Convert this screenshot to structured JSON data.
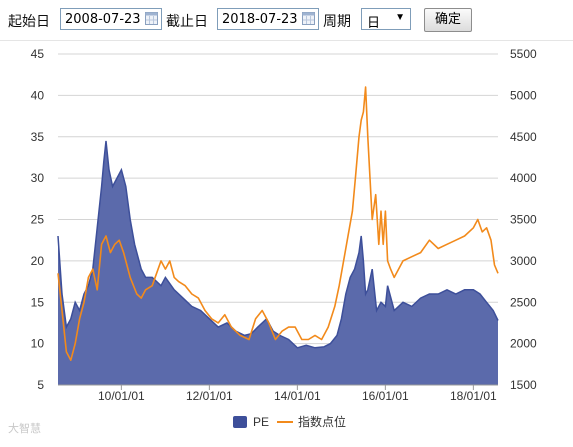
{
  "toolbar": {
    "start_label": "起始日",
    "start_value": "2008-07-23",
    "end_label": "截止日",
    "end_value": "2018-07-23",
    "period_label": "周期",
    "period_value": "日",
    "confirm_label": "确定"
  },
  "watermark": "大智慧",
  "chart_data": {
    "type": "line",
    "x_ticks": [
      "10/01/01",
      "12/01/01",
      "14/01/01",
      "16/01/01",
      "18/01/01"
    ],
    "x_tick_years": [
      2010,
      2012,
      2014,
      2016,
      2018
    ],
    "x_range": [
      2008.56,
      2018.56
    ],
    "y_left_ticks": [
      5,
      10,
      15,
      20,
      25,
      30,
      35,
      40,
      45
    ],
    "y_left_range": [
      5,
      45
    ],
    "y_right_ticks": [
      1500,
      2000,
      2500,
      3000,
      3500,
      4000,
      4500,
      5000,
      5500
    ],
    "y_right_range": [
      1500,
      5500
    ],
    "grid": true,
    "legend_position": "bottom",
    "colors": {
      "pe": "#3d4f9a",
      "pe_fill": "#5b6aab",
      "index": "#f28a1b"
    },
    "series": [
      {
        "name": "PE",
        "axis": "left",
        "style": "area",
        "x": [
          2008.56,
          2008.65,
          2008.75,
          2008.85,
          2008.95,
          2009.05,
          2009.15,
          2009.25,
          2009.35,
          2009.45,
          2009.55,
          2009.6,
          2009.65,
          2009.72,
          2009.8,
          2009.9,
          2010.0,
          2010.1,
          2010.2,
          2010.3,
          2010.45,
          2010.55,
          2010.7,
          2010.8,
          2010.9,
          2011.0,
          2011.2,
          2011.4,
          2011.6,
          2011.8,
          2012.0,
          2012.2,
          2012.4,
          2012.6,
          2012.8,
          2012.95,
          2013.1,
          2013.3,
          2013.45,
          2013.6,
          2013.8,
          2014.0,
          2014.2,
          2014.4,
          2014.6,
          2014.75,
          2014.9,
          2015.0,
          2015.1,
          2015.2,
          2015.3,
          2015.4,
          2015.45,
          2015.5,
          2015.55,
          2015.6,
          2015.7,
          2015.8,
          2015.9,
          2016.0,
          2016.05,
          2016.1,
          2016.2,
          2016.4,
          2016.6,
          2016.8,
          2017.0,
          2017.2,
          2017.4,
          2017.6,
          2017.8,
          2018.0,
          2018.15,
          2018.3,
          2018.45,
          2018.56
        ],
        "values": [
          23,
          16,
          12,
          13,
          15,
          14,
          16,
          17,
          19,
          24,
          29,
          32,
          34.5,
          31,
          29,
          30,
          31,
          29,
          25,
          22,
          19,
          18,
          18,
          17.5,
          17,
          18,
          16.5,
          15.5,
          14.5,
          14,
          13,
          12,
          12.5,
          11.5,
          11,
          11.2,
          12,
          13,
          11.5,
          11,
          10.5,
          9.5,
          9.8,
          9.5,
          9.6,
          10,
          11,
          13,
          16,
          18,
          19,
          21,
          23,
          20,
          16,
          16.5,
          19,
          14,
          15,
          14.5,
          17,
          16,
          14,
          15,
          14.5,
          15.5,
          16,
          16,
          16.5,
          16,
          16.5,
          16.5,
          16,
          15,
          14,
          12.8
        ]
      },
      {
        "name": "指数点位",
        "axis": "right",
        "style": "line",
        "x": [
          2008.56,
          2008.65,
          2008.75,
          2008.85,
          2008.95,
          2009.05,
          2009.15,
          2009.25,
          2009.35,
          2009.45,
          2009.55,
          2009.65,
          2009.75,
          2009.85,
          2009.95,
          2010.05,
          2010.2,
          2010.35,
          2010.45,
          2010.55,
          2010.7,
          2010.8,
          2010.9,
          2011.0,
          2011.1,
          2011.2,
          2011.3,
          2011.45,
          2011.6,
          2011.75,
          2011.9,
          2012.05,
          2012.2,
          2012.35,
          2012.5,
          2012.7,
          2012.9,
          2013.05,
          2013.2,
          2013.35,
          2013.5,
          2013.65,
          2013.8,
          2013.95,
          2014.1,
          2014.25,
          2014.4,
          2014.55,
          2014.7,
          2014.85,
          2014.95,
          2015.05,
          2015.15,
          2015.25,
          2015.32,
          2015.4,
          2015.45,
          2015.5,
          2015.55,
          2015.6,
          2015.65,
          2015.7,
          2015.78,
          2015.85,
          2015.9,
          2015.95,
          2016.0,
          2016.05,
          2016.12,
          2016.2,
          2016.4,
          2016.6,
          2016.8,
          2017.0,
          2017.2,
          2017.4,
          2017.6,
          2017.8,
          2018.0,
          2018.1,
          2018.2,
          2018.3,
          2018.4,
          2018.48,
          2018.56
        ],
        "values": [
          2850,
          2400,
          1900,
          1800,
          2000,
          2300,
          2500,
          2800,
          2900,
          2650,
          3200,
          3300,
          3100,
          3200,
          3250,
          3100,
          2800,
          2600,
          2550,
          2650,
          2700,
          2850,
          3000,
          2900,
          3000,
          2800,
          2750,
          2700,
          2600,
          2550,
          2400,
          2300,
          2250,
          2350,
          2200,
          2100,
          2050,
          2300,
          2400,
          2250,
          2050,
          2150,
          2200,
          2200,
          2050,
          2050,
          2100,
          2050,
          2200,
          2450,
          2700,
          3000,
          3300,
          3600,
          4000,
          4500,
          4700,
          4800,
          5100,
          4500,
          4000,
          3500,
          3800,
          3200,
          3600,
          3200,
          3600,
          3000,
          2900,
          2800,
          3000,
          3050,
          3100,
          3250,
          3150,
          3200,
          3250,
          3300,
          3400,
          3500,
          3350,
          3400,
          3250,
          2950,
          2850
        ]
      }
    ]
  }
}
